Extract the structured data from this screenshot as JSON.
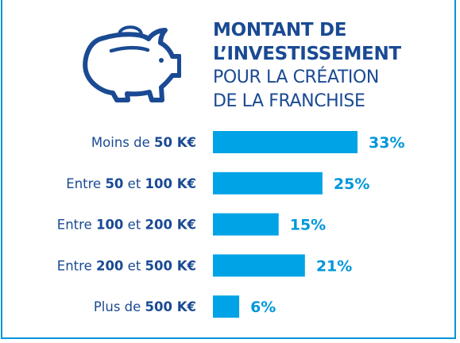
{
  "title": {
    "line1": "MONTANT DE",
    "line2": "L’INVESTISSEMENT",
    "line3": "POUR LA CRÉATION",
    "line4": "DE LA FRANCHISE"
  },
  "icon": "piggy-bank-icon",
  "colors": {
    "bar": "#00a3e6",
    "value": "#0097db",
    "text": "#1a4a93",
    "border": "#0094d9"
  },
  "chart_data": {
    "type": "bar",
    "orientation": "horizontal",
    "categories": [
      [
        {
          "t": "Moins de ",
          "b": false
        },
        {
          "t": "50 K€",
          "b": true
        }
      ],
      [
        {
          "t": "Entre ",
          "b": false
        },
        {
          "t": "50",
          "b": true
        },
        {
          "t": " et ",
          "b": false
        },
        {
          "t": "100 K€",
          "b": true
        }
      ],
      [
        {
          "t": "Entre ",
          "b": false
        },
        {
          "t": "100",
          "b": true
        },
        {
          "t": " et ",
          "b": false
        },
        {
          "t": "200 K€",
          "b": true
        }
      ],
      [
        {
          "t": "Entre ",
          "b": false
        },
        {
          "t": "200",
          "b": true
        },
        {
          "t": " et ",
          "b": false
        },
        {
          "t": "500 K€",
          "b": true
        }
      ],
      [
        {
          "t": "Plus de ",
          "b": false
        },
        {
          "t": "500 K€",
          "b": true
        }
      ]
    ],
    "values": [
      33,
      25,
      15,
      21,
      6
    ],
    "value_labels": [
      "33%",
      "25%",
      "15%",
      "21%",
      "6%"
    ],
    "xlim": [
      0,
      33
    ],
    "grid": false
  }
}
